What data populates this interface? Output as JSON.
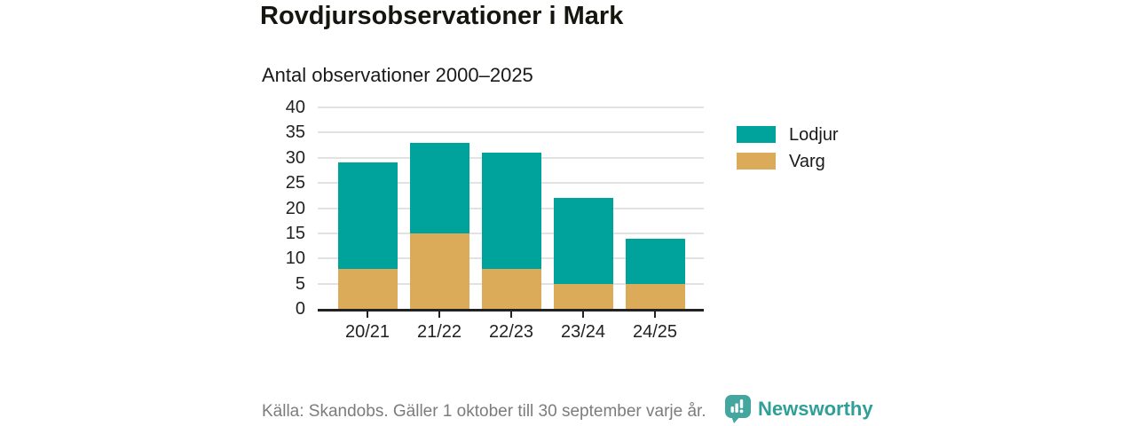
{
  "header": {
    "title": "Rovdjursobservationer i Mark",
    "subtitle": "Antal observationer 2000–2025"
  },
  "chart_data": {
    "type": "bar",
    "stacked": true,
    "title": "Rovdjursobservationer i Mark",
    "subtitle": "Antal observationer 2000–2025",
    "xlabel": "",
    "ylabel": "",
    "categories": [
      "20/21",
      "21/22",
      "22/23",
      "23/24",
      "24/25"
    ],
    "series": [
      {
        "name": "Varg",
        "color": "#dcab5a",
        "values": [
          8,
          15,
          8,
          5,
          5
        ]
      },
      {
        "name": "Lodjur",
        "color": "#00a39c",
        "values": [
          21,
          18,
          23,
          17,
          9
        ]
      }
    ],
    "stack_totals": [
      29,
      33,
      31,
      22,
      14
    ],
    "ylim": [
      0,
      40
    ],
    "yticks": [
      0,
      5,
      10,
      15,
      20,
      25,
      30,
      35,
      40
    ],
    "grid": true,
    "legend_position": "right"
  },
  "legend": {
    "items": [
      {
        "label": "Lodjur",
        "color": "#00a39c"
      },
      {
        "label": "Varg",
        "color": "#dcab5a"
      }
    ]
  },
  "footer": {
    "source": "Källa: Skandobs. Gäller 1 oktober till 30 september varje år.",
    "brand": "Newsworthy"
  },
  "colors": {
    "lodjur": "#00a39c",
    "varg": "#dcab5a",
    "brand_teal": "#2f9f98",
    "logo_bubble": "#43a7a0",
    "gridline": "#e2e2e2",
    "axis": "#222222",
    "source_text": "#7c7c7c"
  }
}
